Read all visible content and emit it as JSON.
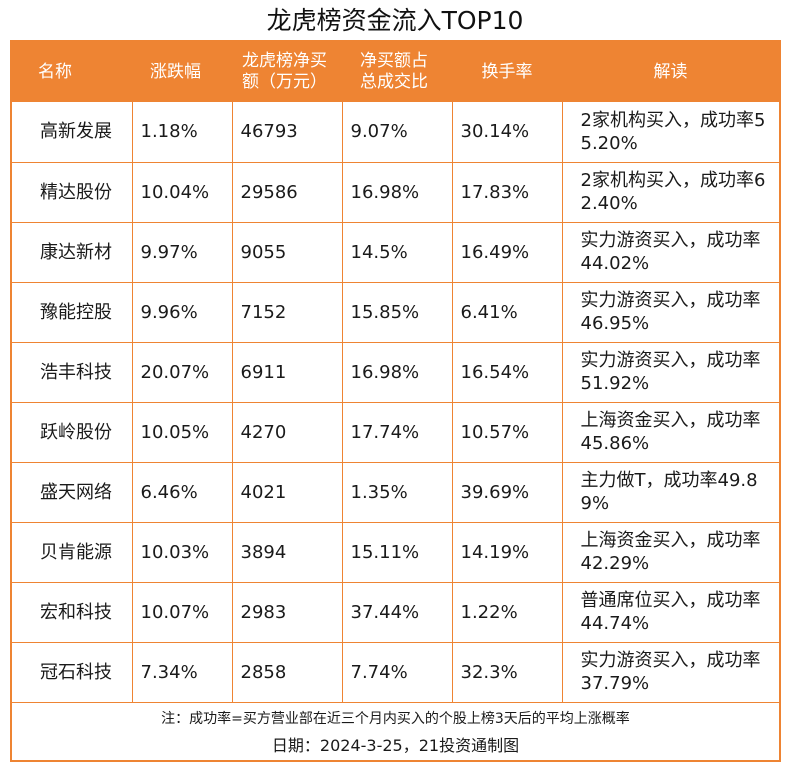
{
  "title": "龙虎榜资金流入TOP10",
  "headers": {
    "name": "名称",
    "change": "涨跌幅",
    "net_buy": "龙虎榜净买额（万元）",
    "ratio": "净买额占总成交比",
    "turnover": "换手率",
    "note": "解读"
  },
  "rows": [
    {
      "name": "高新发展",
      "change": "1.18%",
      "net_buy": "46793",
      "ratio": "9.07%",
      "turnover": "30.14%",
      "note": "2家机构买入，成功率55.20%"
    },
    {
      "name": "精达股份",
      "change": "10.04%",
      "net_buy": "29586",
      "ratio": "16.98%",
      "turnover": "17.83%",
      "note": "2家机构买入，成功率62.40%"
    },
    {
      "name": "康达新材",
      "change": "9.97%",
      "net_buy": "9055",
      "ratio": "14.5%",
      "turnover": "16.49%",
      "note": "实力游资买入，成功率44.02%"
    },
    {
      "name": "豫能控股",
      "change": "9.96%",
      "net_buy": "7152",
      "ratio": "15.85%",
      "turnover": "6.41%",
      "note": "实力游资买入，成功率46.95%"
    },
    {
      "name": "浩丰科技",
      "change": "20.07%",
      "net_buy": "6911",
      "ratio": "16.98%",
      "turnover": "16.54%",
      "note": "实力游资买入，成功率51.92%"
    },
    {
      "name": "跃岭股份",
      "change": "10.05%",
      "net_buy": "4270",
      "ratio": "17.74%",
      "turnover": "10.57%",
      "note": "上海资金买入，成功率45.86%"
    },
    {
      "name": "盛天网络",
      "change": "6.46%",
      "net_buy": "4021",
      "ratio": "1.35%",
      "turnover": "39.69%",
      "note": "主力做T，成功率49.89%"
    },
    {
      "name": "贝肯能源",
      "change": "10.03%",
      "net_buy": "3894",
      "ratio": "15.11%",
      "turnover": "14.19%",
      "note": "上海资金买入，成功率42.29%"
    },
    {
      "name": "宏和科技",
      "change": "10.07%",
      "net_buy": "2983",
      "ratio": "37.44%",
      "turnover": "1.22%",
      "note": "普通席位买入，成功率44.74%"
    },
    {
      "name": "冠石科技",
      "change": "7.34%",
      "net_buy": "2858",
      "ratio": "7.74%",
      "turnover": "32.3%",
      "note": "实力游资买入，成功率37.79%"
    }
  ],
  "footnote": "注：成功率=买方营业部在近三个月内买入的个股上榜3天后的平均上涨概率",
  "dateline": "日期：2024-3-25，21投资通制图",
  "colors": {
    "accent": "#ee8433",
    "header_text": "#ffffff"
  }
}
